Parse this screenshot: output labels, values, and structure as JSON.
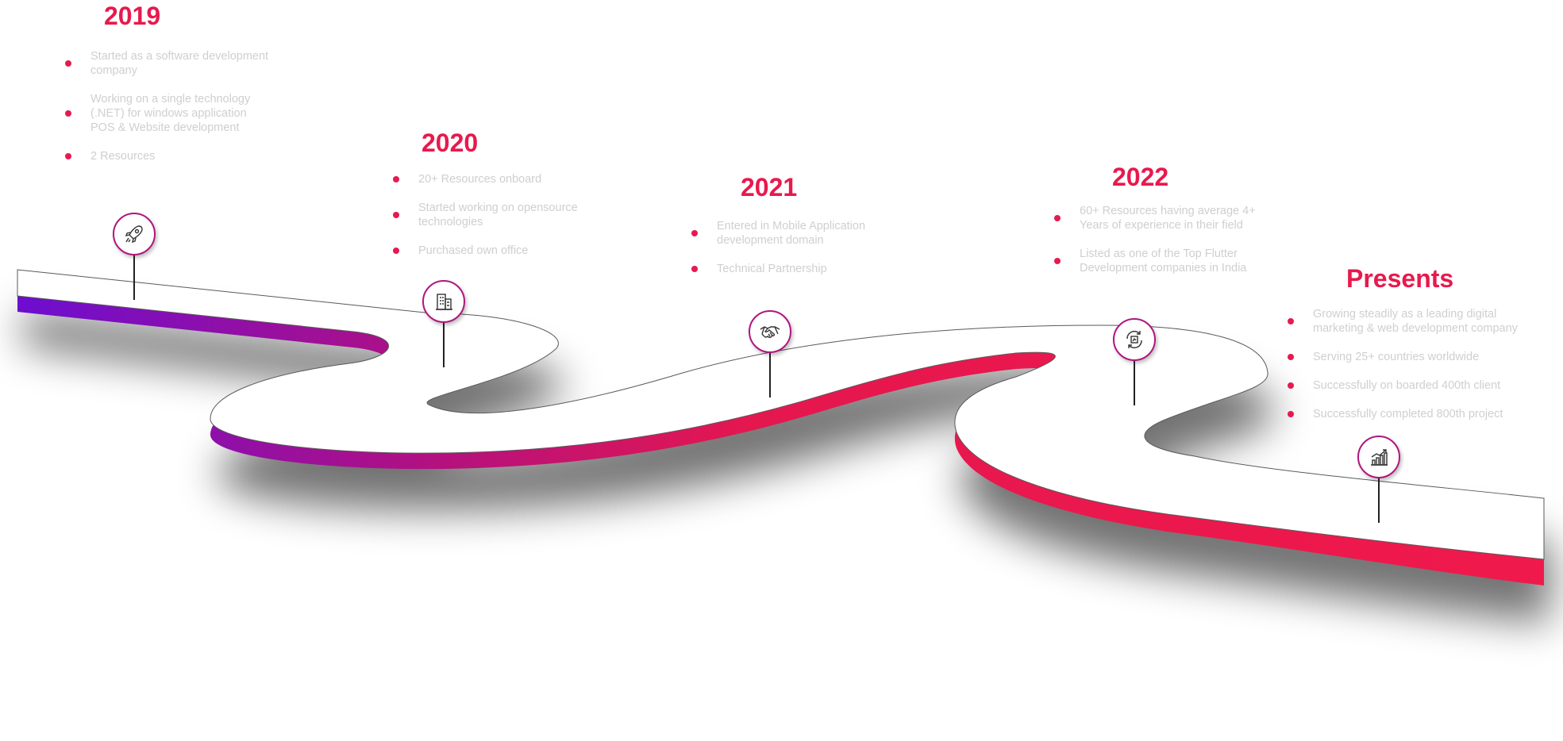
{
  "timeline": [
    {
      "year": "2019",
      "icon": "rocket-icon",
      "points": [
        "Started as a software development company",
        "Working on a single technology (.NET) for windows application POS & Website development",
        "2 Resources"
      ]
    },
    {
      "year": "2020",
      "icon": "office-building-icon",
      "points": [
        "20+ Resources onboard",
        "Started working on opensource technologies",
        "Purchased own office"
      ]
    },
    {
      "year": "2021",
      "icon": "handshake-icon",
      "points": [
        "Entered in Mobile Application development domain",
        "Technical Partnership"
      ]
    },
    {
      "year": "2022",
      "icon": "growth-cycle-icon",
      "points": [
        "60+ Resources having average 4+ Years of experience in their field",
        "Listed as one of the Top Flutter Development companies in India"
      ]
    },
    {
      "year": "Presents",
      "icon": "bar-chart-growth-icon",
      "points": [
        "Growing steadily as a leading digital marketing & web development company",
        "Serving 25+ countries worldwide",
        "Successfully on boarded 400th client",
        "Successfully completed 800th project"
      ]
    }
  ],
  "colors": {
    "accent": "#e8194d",
    "gradient_start": "#6a0dd4",
    "gradient_end": "#f0194b",
    "bullet_text": "#cfcfcf"
  }
}
